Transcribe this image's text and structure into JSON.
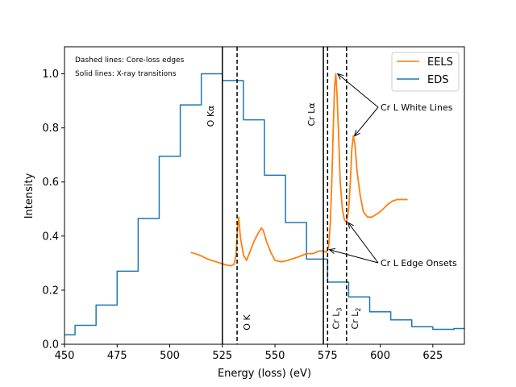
{
  "chart_data": {
    "type": "line",
    "title": "",
    "xlabel": "Energy (loss) (eV)",
    "ylabel": "Intensity",
    "xlim": [
      450,
      640
    ],
    "ylim": [
      0,
      1.1
    ],
    "xticks": [
      450,
      475,
      500,
      525,
      550,
      575,
      600,
      625
    ],
    "yticks": [
      0.0,
      0.2,
      0.4,
      0.6,
      0.8,
      1.0
    ],
    "notes": [
      "Dashed lines: Core-loss edges",
      "Solid lines: X-ray transitions"
    ],
    "legend": {
      "position": "upper-right",
      "entries": [
        {
          "name": "EELS",
          "color": "#ff7f0e"
        },
        {
          "name": "EDS",
          "color": "#1f77b4"
        }
      ]
    },
    "series": [
      {
        "name": "EDS",
        "style": "step",
        "color": "#1f77b4",
        "x": [
          450,
          455,
          465,
          475,
          485,
          495,
          505,
          515,
          525,
          535,
          545,
          555,
          565,
          575,
          585,
          595,
          605,
          615,
          625,
          635,
          640
        ],
        "y": [
          0.035,
          0.07,
          0.145,
          0.27,
          0.465,
          0.695,
          0.885,
          1.0,
          0.975,
          0.83,
          0.625,
          0.45,
          0.315,
          0.23,
          0.175,
          0.12,
          0.09,
          0.065,
          0.055,
          0.058,
          0.058
        ]
      },
      {
        "name": "EELS",
        "style": "line",
        "color": "#ff7f0e",
        "x": [
          510,
          514,
          518,
          522,
          526,
          529,
          530.5,
          531.5,
          532.2,
          532.8,
          533.5,
          535,
          536.5,
          538,
          540,
          542,
          543.5,
          544.5,
          546,
          548,
          550,
          553,
          556,
          560,
          565,
          568,
          571,
          573,
          574.5,
          575.5,
          576.3,
          577,
          577.7,
          578.3,
          578.9,
          579.5,
          580.2,
          581,
          582,
          583,
          584,
          585,
          585.8,
          586.5,
          587.2,
          588,
          589,
          590.5,
          592,
          594,
          596,
          598,
          600,
          602,
          604,
          606,
          608,
          610,
          613
        ],
        "y": [
          0.34,
          0.33,
          0.315,
          0.305,
          0.295,
          0.29,
          0.295,
          0.33,
          0.43,
          0.47,
          0.4,
          0.33,
          0.31,
          0.34,
          0.38,
          0.41,
          0.43,
          0.42,
          0.38,
          0.34,
          0.31,
          0.305,
          0.31,
          0.32,
          0.335,
          0.335,
          0.345,
          0.345,
          0.34,
          0.36,
          0.45,
          0.6,
          0.8,
          0.95,
          1.0,
          0.92,
          0.78,
          0.6,
          0.5,
          0.46,
          0.45,
          0.5,
          0.6,
          0.72,
          0.77,
          0.74,
          0.64,
          0.55,
          0.49,
          0.47,
          0.47,
          0.48,
          0.49,
          0.505,
          0.52,
          0.53,
          0.535,
          0.535,
          0.535
        ]
      }
    ],
    "vlines": [
      {
        "x": 525,
        "style": "solid",
        "label": "O Kα"
      },
      {
        "x": 532,
        "style": "dashed",
        "label": "O K"
      },
      {
        "x": 573,
        "style": "solid",
        "label": "Cr Lα"
      },
      {
        "x": 575,
        "style": "dashed",
        "label": "Cr L3"
      },
      {
        "x": 584,
        "style": "dashed",
        "label": "Cr L2"
      }
    ],
    "annotations": [
      {
        "text": "Cr L White Lines",
        "targets": [
          [
            579,
            1.0
          ],
          [
            587,
            0.77
          ]
        ]
      },
      {
        "text": "Cr L Edge Onsets",
        "targets": [
          [
            575,
            0.35
          ],
          [
            584,
            0.45
          ]
        ]
      }
    ]
  }
}
